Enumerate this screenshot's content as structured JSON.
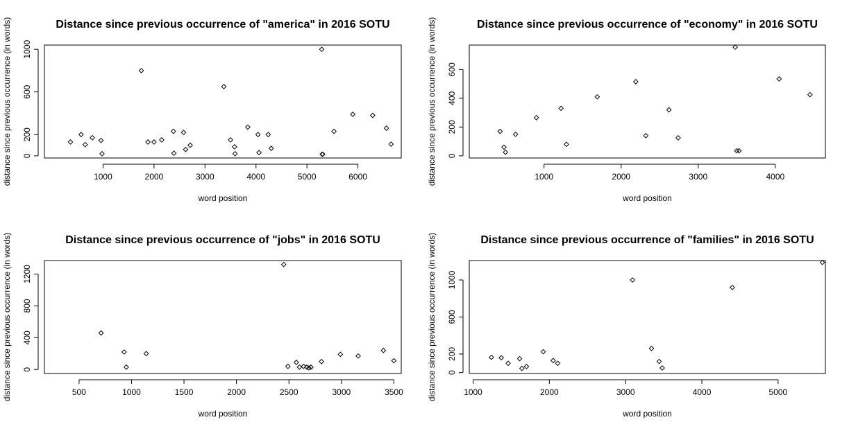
{
  "chart_data": [
    {
      "type": "scatter",
      "title": "Distance since previous occurrence of \"america\" in 2016 SOTU",
      "xlabel": "word position",
      "ylabel": "distance since previous occurrence (in words)",
      "xlim": [
        -150,
        6850
      ],
      "ylim": [
        -20,
        1040
      ],
      "xticks": [
        1000,
        2000,
        3000,
        4000,
        5000,
        6000
      ],
      "yticks": [
        0,
        200,
        600,
        1000
      ],
      "x": [
        360,
        570,
        650,
        790,
        960,
        980,
        1750,
        1880,
        2000,
        2150,
        2380,
        2390,
        2580,
        2620,
        2710,
        3370,
        3500,
        3580,
        3590,
        3840,
        4040,
        4060,
        4240,
        4300,
        5290,
        5300,
        5310,
        5530,
        5900,
        6290,
        6560,
        6650
      ],
      "y": [
        130,
        200,
        105,
        170,
        145,
        20,
        800,
        130,
        130,
        150,
        230,
        25,
        220,
        60,
        100,
        650,
        150,
        85,
        20,
        270,
        200,
        30,
        200,
        70,
        1000,
        15,
        15,
        230,
        390,
        380,
        260,
        110
      ]
    },
    {
      "type": "scatter",
      "title": "Distance since previous occurrence of \"economy\" in 2016 SOTU",
      "xlabel": "word position",
      "ylabel": "distance since previous occurrence (in words)",
      "xlim": [
        30,
        4650
      ],
      "ylim": [
        -15,
        770
      ],
      "xticks": [
        1000,
        2000,
        3000,
        4000
      ],
      "yticks": [
        0,
        200,
        400,
        600
      ],
      "x": [
        430,
        480,
        500,
        630,
        900,
        1220,
        1290,
        1690,
        2190,
        2320,
        2620,
        2740,
        3480,
        3500,
        3530,
        4050,
        4450
      ],
      "y": [
        170,
        60,
        25,
        150,
        265,
        330,
        80,
        410,
        515,
        140,
        320,
        125,
        755,
        35,
        35,
        535,
        425
      ]
    },
    {
      "type": "scatter",
      "title": "Distance since previous occurrence of \"jobs\" in 2016 SOTU",
      "xlabel": "word position",
      "ylabel": "distance since previous occurrence (in words)",
      "xlim": [
        170,
        3570
      ],
      "ylim": [
        -50,
        1370
      ],
      "xticks": [
        500,
        1000,
        1500,
        2000,
        2500,
        3000,
        3500
      ],
      "yticks": [
        0,
        400,
        800,
        1200
      ],
      "x": [
        710,
        930,
        950,
        1140,
        2450,
        2490,
        2570,
        2600,
        2640,
        2670,
        2690,
        2710,
        2810,
        2990,
        3160,
        3400,
        3500
      ],
      "y": [
        460,
        220,
        30,
        200,
        1320,
        40,
        90,
        30,
        40,
        30,
        20,
        30,
        100,
        190,
        170,
        240,
        110
      ]
    },
    {
      "type": "scatter",
      "title": "Distance since previous occurrence of \"families\" in 2016 SOTU",
      "xlabel": "word position",
      "ylabel": "distance since previous occurrence (in words)",
      "xlim": [
        950,
        5620
      ],
      "ylim": [
        -10,
        1210
      ],
      "xticks": [
        1000,
        2000,
        3000,
        4000,
        5000
      ],
      "yticks": [
        0,
        200,
        600,
        1000
      ],
      "x": [
        1240,
        1370,
        1460,
        1610,
        1640,
        1700,
        1920,
        2050,
        2110,
        3090,
        3340,
        3440,
        3480,
        4400,
        5580
      ],
      "y": [
        165,
        160,
        100,
        150,
        45,
        65,
        225,
        130,
        100,
        1000,
        260,
        120,
        50,
        920,
        1190
      ]
    }
  ]
}
